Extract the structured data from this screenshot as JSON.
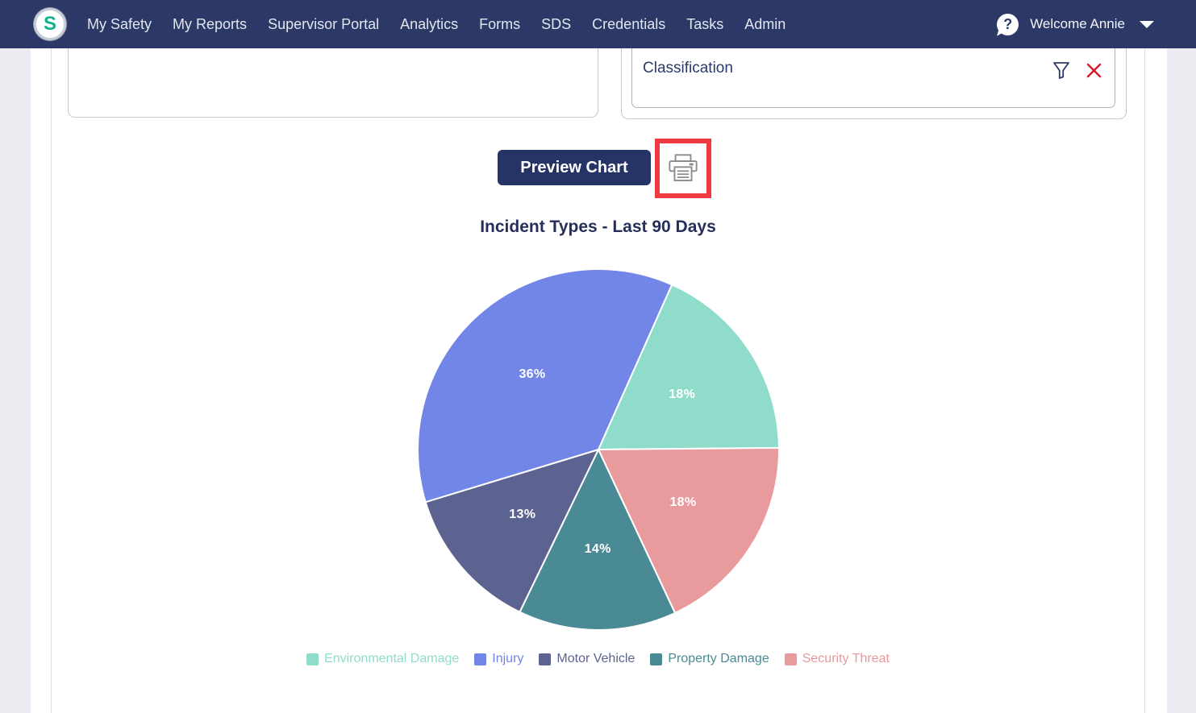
{
  "nav": {
    "logo_letter": "S",
    "items": [
      "My Safety",
      "My Reports",
      "Supervisor Portal",
      "Analytics",
      "Forms",
      "SDS",
      "Credentials",
      "Tasks",
      "Admin"
    ],
    "welcome": "Welcome Annie"
  },
  "filters": {
    "classification_label": "Classification"
  },
  "actions": {
    "preview_button": "Preview Chart"
  },
  "icons": {
    "help": "help-question-icon",
    "user_menu": "chevron-down-icon",
    "filter": "filter-funnel-icon",
    "clear": "clear-x-icon",
    "print": "printer-icon"
  },
  "chart_data": {
    "type": "pie",
    "title": "Incident Types - Last 90 Days",
    "label_unit": "%",
    "legend_position": "bottom",
    "start_angle_deg": 24,
    "series": [
      {
        "label": "Environmental Damage",
        "value": 18,
        "color": "#8fdccb"
      },
      {
        "label": "Injury",
        "value": 36,
        "color": "#7286e8"
      },
      {
        "label": "Motor Vehicle",
        "value": 13,
        "color": "#5d6390"
      },
      {
        "label": "Property Damage",
        "value": 14,
        "color": "#4a8a94"
      },
      {
        "label": "Security Threat",
        "value": 18,
        "color": "#e89a9d"
      }
    ],
    "draw_order_clockwise": [
      "Environmental Damage",
      "Security Threat",
      "Property Damage",
      "Motor Vehicle",
      "Injury"
    ]
  },
  "colors": {
    "nav_background": "#2c3966",
    "logo_green": "#14b28c",
    "navy_text": "#2b3a69",
    "button_navy": "#263366",
    "highlight_red": "#ee3a40",
    "clear_x_red": "#d6182b",
    "printer_gray": "#8c8c8c",
    "page_gutter_gray": "#ecedf3"
  }
}
